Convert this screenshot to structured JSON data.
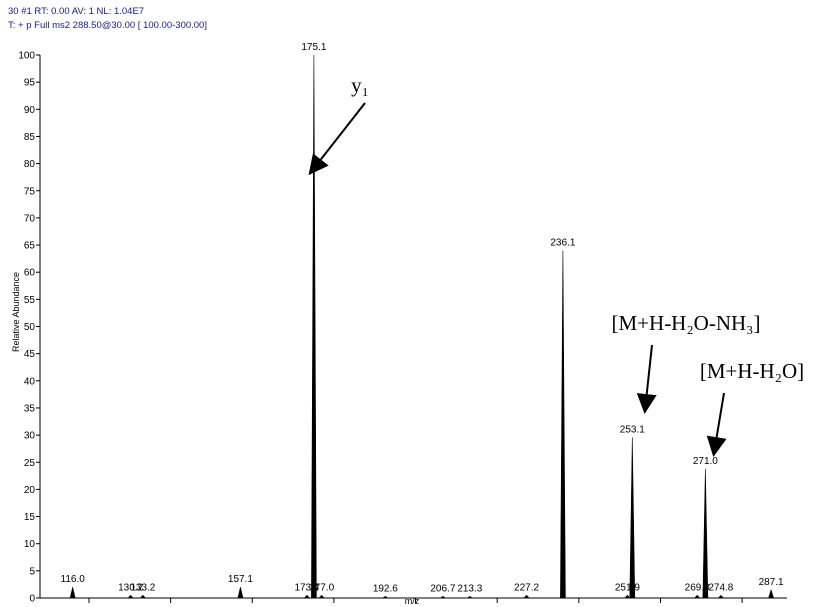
{
  "header": {
    "line1": "30 #1  RT: 0.00  AV: 1  NL: 1.04E7",
    "line2": "T: + p Full ms2 288.50@30.00 [ 100.00-300.00]"
  },
  "chart_data": {
    "type": "spectrum",
    "x_label": "m/z",
    "y_label": "Relative Abundance",
    "x": [
      116.0,
      130.2,
      133.2,
      157.1,
      173.4,
      175.1,
      177.0,
      192.6,
      206.7,
      213.3,
      227.2,
      236.1,
      251.9,
      253.1,
      269.0,
      271.0,
      274.8,
      287.1
    ],
    "x_labels": [
      "116.0",
      "130.2",
      "133.2",
      "157.1",
      "173.4",
      "175.1",
      "177.0",
      "192.6",
      "206.7",
      "213.3",
      "227.2",
      "236.1",
      "251.9",
      "253.1",
      "269.0",
      "271.0",
      "274.8",
      "287.1"
    ],
    "values": [
      2,
      0.5,
      0.5,
      2,
      0.5,
      100,
      0.5,
      0.3,
      0.3,
      0.3,
      0.5,
      64,
      0.5,
      29.6,
      0.5,
      23.8,
      0.5,
      1.5
    ],
    "color": "#000000",
    "xlim": [
      108,
      291
    ],
    "xticks": [
      120,
      140,
      160,
      180,
      200,
      220,
      240,
      260,
      280
    ],
    "ylim": [
      0,
      100
    ],
    "yticks": [
      0,
      5,
      10,
      15,
      20,
      25,
      30,
      35,
      40,
      45,
      50,
      55,
      60,
      65,
      70,
      75,
      80,
      85,
      90,
      95,
      100
    ],
    "annotations": [
      "y₁",
      "[M+H-H₂O-NH₃]",
      "[M+H-H₂O]"
    ]
  }
}
